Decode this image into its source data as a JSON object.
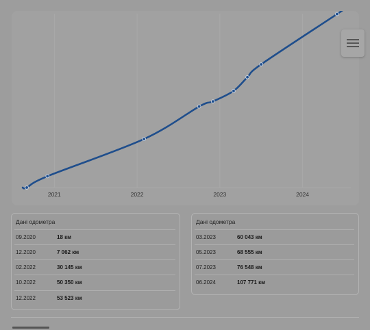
{
  "chart_data": {
    "type": "line",
    "x_ticks": [
      "2021",
      "2022",
      "2023",
      "2024"
    ],
    "points": [
      {
        "date": "09.2020",
        "km": 18
      },
      {
        "date": "12.2020",
        "km": 7062
      },
      {
        "date": "02.2022",
        "km": 30145
      },
      {
        "date": "10.2022",
        "km": 50350
      },
      {
        "date": "12.2022",
        "km": 53523
      },
      {
        "date": "03.2023",
        "km": 60043
      },
      {
        "date": "05.2023",
        "km": 68555
      },
      {
        "date": "07.2023",
        "km": 76548
      },
      {
        "date": "06.2024",
        "km": 107771
      }
    ],
    "grid": true,
    "line_color": "#1f4e8c"
  },
  "odometer_left": {
    "title": "Дані одометра",
    "rows": [
      {
        "date": "09.2020",
        "value": "18 км"
      },
      {
        "date": "12.2020",
        "value": "7 062 км"
      },
      {
        "date": "02.2022",
        "value": "30 145 км"
      },
      {
        "date": "10.2022",
        "value": "50 350 км"
      },
      {
        "date": "12.2022",
        "value": "53 523 км"
      }
    ]
  },
  "odometer_right": {
    "title": "Дані одометра",
    "rows": [
      {
        "date": "03.2023",
        "value": "60 043 км"
      },
      {
        "date": "05.2023",
        "value": "68 555 км"
      },
      {
        "date": "07.2023",
        "value": "76 548 км"
      },
      {
        "date": "06.2024",
        "value": "107 771 км"
      }
    ]
  },
  "menu": {
    "icon": "hamburger-icon"
  }
}
